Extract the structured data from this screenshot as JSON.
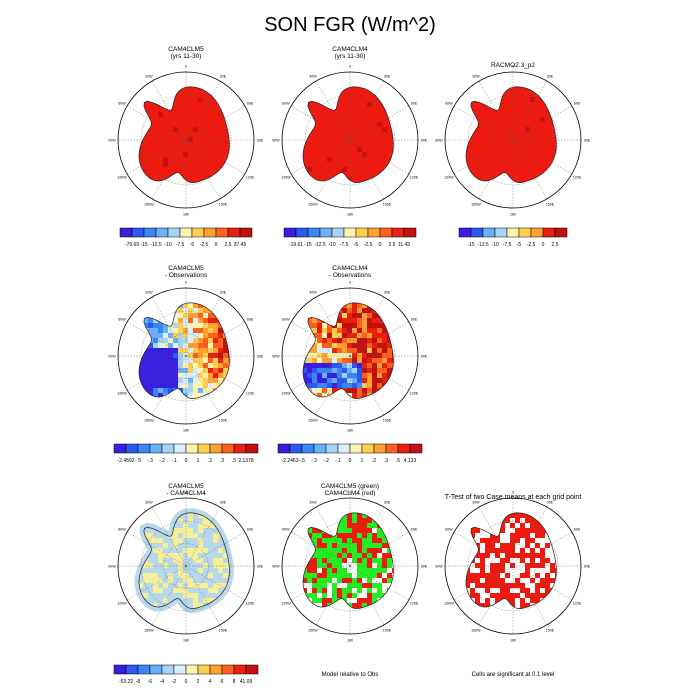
{
  "page_title": "SON FGR (W/m^2)",
  "panels": [
    {
      "title1": "CAM4CLM5",
      "title2": "(yrs 11-30)",
      "mode": "red",
      "colorbar": [
        "-79.69",
        "-15",
        "-12.5",
        "-10",
        "-7.5",
        "-5",
        "-2.5",
        "0",
        "2.5",
        "37.45"
      ]
    },
    {
      "title1": "CAM4CLM4",
      "title2": "(yrs 11-30)",
      "mode": "red",
      "colorbar": [
        "-19.61",
        "-15",
        "-12.5",
        "-10",
        "-7.5",
        "-5",
        "-2.5",
        "0",
        "2.5",
        "11.43"
      ]
    },
    {
      "title1": "RACMO2.3_p2",
      "title2": "",
      "mode": "red",
      "colorbar": [
        "-15",
        "-12.5",
        "-10",
        "-7.5",
        "-5",
        "-2.5",
        "0",
        "2.5"
      ]
    },
    {
      "title1": "CAM4CLM5",
      "title2": "- Observations",
      "mode": "diff1",
      "colorbar": [
        "-2.4592",
        "-.5",
        "-.3",
        "-.2",
        "-.1",
        "0",
        "1",
        ".2",
        ".3",
        ".5",
        "2.1378"
      ]
    },
    {
      "title1": "CAM4CLM4",
      "title2": "- Observations",
      "mode": "diff2",
      "colorbar": [
        "-2.2463",
        "-.5",
        "-.3",
        "-.2",
        "-.1",
        "0",
        "1",
        ".2",
        ".3",
        ".5",
        "4.133"
      ]
    },
    {
      "title1": "CAM4CLM5",
      "title2": "- CAM4CLM4",
      "mode": "blueyellow",
      "colorbar": [
        "-63.22",
        "-8",
        "-6",
        "-4",
        "-2",
        "0",
        "2",
        "4",
        "6",
        "8",
        "41.09"
      ]
    },
    {
      "title1": "CAM4CLM5 (green)",
      "title2": "CAM4CLM4 (red)",
      "mode": "greenred",
      "footer": "Model relative to Obs"
    },
    {
      "title1": "T-Test of two Case means at each grid point",
      "title2": "",
      "mode": "sparse",
      "footer": "Cells are significant at 0.1 level"
    }
  ],
  "lon_labels": [
    "0",
    "30E",
    "60E",
    "90E",
    "120E",
    "150E",
    "180",
    "150W",
    "120W",
    "90W",
    "60W",
    "30W"
  ],
  "colors": {
    "ramp12": [
      "#3b1fe0",
      "#2c59f0",
      "#3a86f5",
      "#6aaff7",
      "#a6d4f7",
      "#d9efff",
      "#fff3b0",
      "#ffd050",
      "#ffa030",
      "#ff6020",
      "#e82010",
      "#c01010"
    ],
    "red": "#ee1a10",
    "green": "#22ee22",
    "light_blue": "#b8d8ec",
    "yellow": "#f6ef9a"
  }
}
